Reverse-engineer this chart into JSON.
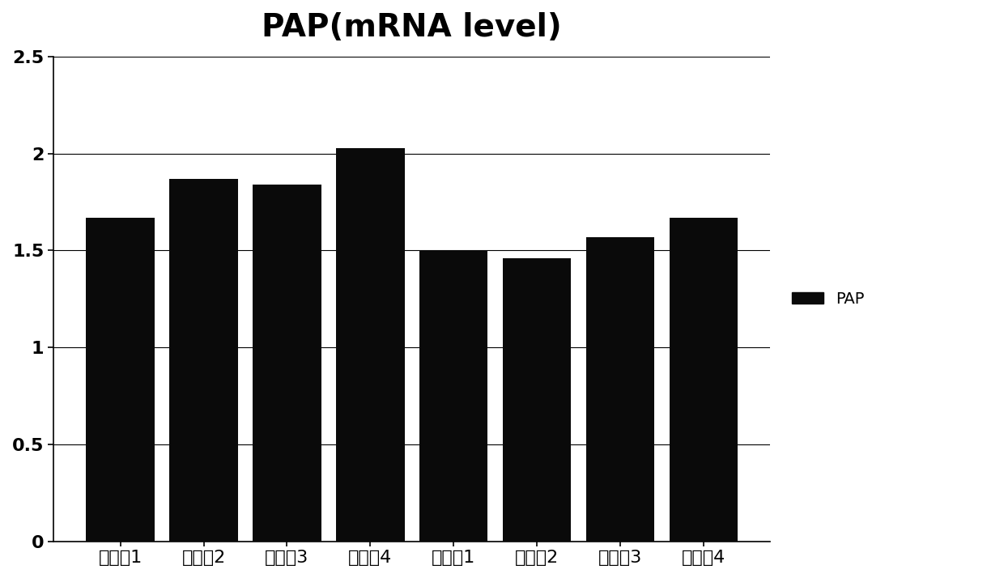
{
  "title": "PAP(mRNA level)",
  "categories": [
    "实验组1",
    "实验组2",
    "实验组3",
    "实验组4",
    "对照组1",
    "对照组2",
    "对照组3",
    "对照组4"
  ],
  "values": [
    1.67,
    1.87,
    1.84,
    2.03,
    1.5,
    1.46,
    1.57,
    1.67
  ],
  "bar_color": "#0a0a0a",
  "ylim": [
    0,
    2.5
  ],
  "yticks": [
    0,
    0.5,
    1.0,
    1.5,
    2.0,
    2.5
  ],
  "ytick_labels": [
    "0",
    "0.5",
    "1",
    "1.5",
    "2",
    "2.5"
  ],
  "legend_label": "PAP",
  "title_fontsize": 28,
  "tick_fontsize": 16,
  "legend_fontsize": 14,
  "background_color": "#ffffff",
  "bar_width": 0.82
}
